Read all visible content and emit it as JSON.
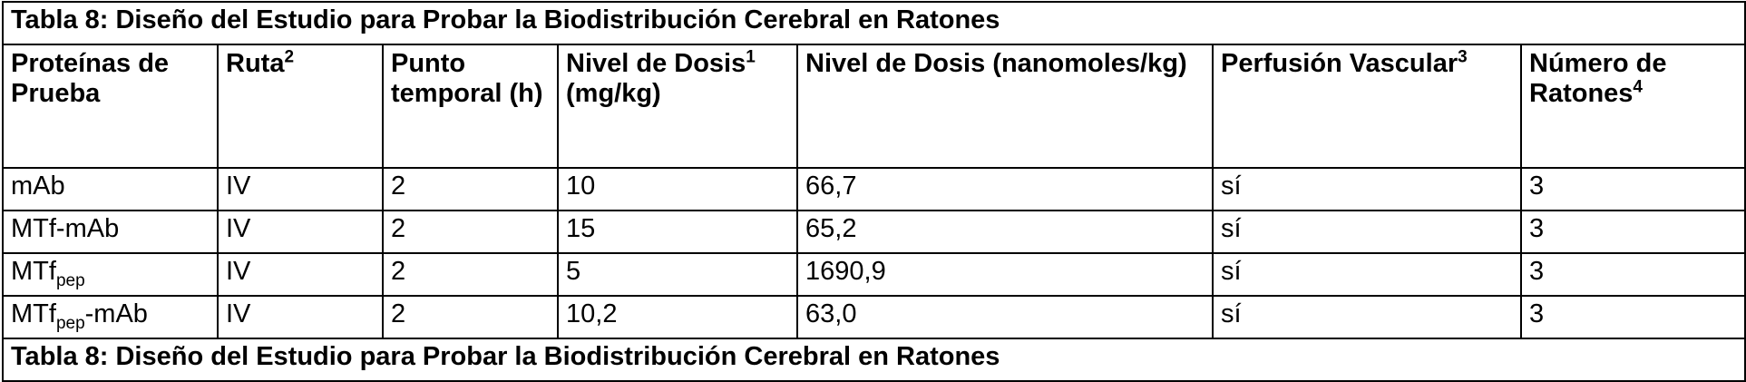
{
  "table": {
    "title": "Tabla 8: Diseño del Estudio para Probar la Biodistribución Cerebral en Ratones",
    "header": [
      {
        "text": "Proteínas de Prueba"
      },
      {
        "text": "Ruta",
        "sup": "2"
      },
      {
        "text": "Punto temporal (h)"
      },
      {
        "text": "Nivel de Dosis",
        "sup": "1",
        "after": "(mg/kg)"
      },
      {
        "text": "Nivel de Dosis (nanomoles/kg)"
      },
      {
        "text": "Perfusión Vascular",
        "sup": "3"
      },
      {
        "text": "Número de Ratones",
        "sup": "4"
      }
    ],
    "rows": [
      [
        {
          "text": "mAb"
        },
        "IV",
        "2",
        "10",
        "66,7",
        "sí",
        "3"
      ],
      [
        {
          "text": "MTf-mAb"
        },
        "IV",
        "2",
        "15",
        "65,2",
        "sí",
        "3"
      ],
      [
        {
          "text": "MTf",
          "sub": "pep"
        },
        "IV",
        "2",
        "5",
        "1690,9",
        "sí",
        "3"
      ],
      [
        {
          "text": "MTf",
          "sub": "pep",
          "after": "-mAb"
        },
        "IV",
        "2",
        "10,2",
        "63,0",
        "sí",
        "3"
      ]
    ],
    "footer": "Tabla 8: Diseño del Estudio para Probar la Biodistribución Cerebral en Ratones"
  }
}
